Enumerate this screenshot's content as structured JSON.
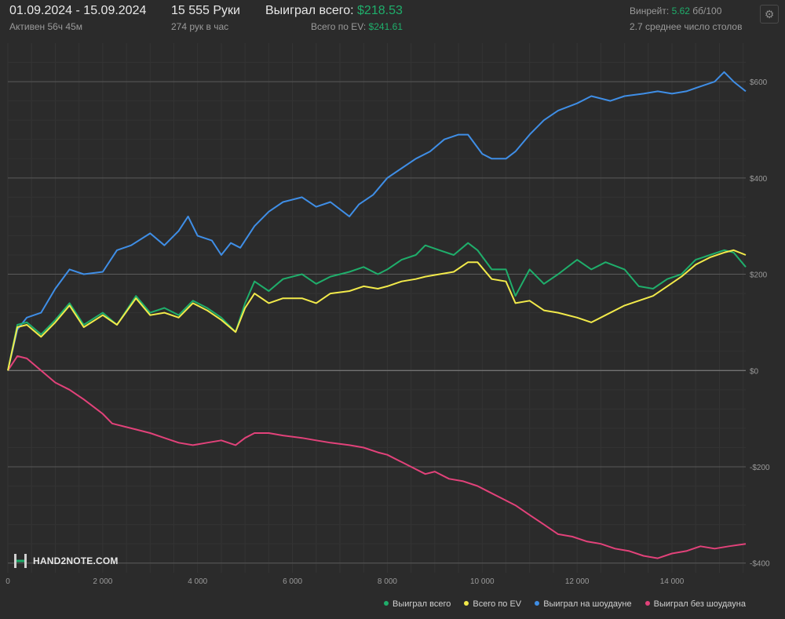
{
  "header": {
    "date_range": "01.09.2024 - 15.09.2024",
    "active": "Активен 56ч 45м",
    "hands": "15 555 Руки",
    "hands_per_hour": "274 рук в час",
    "won_total_label": "Выиграл всего:",
    "won_total_value": "$218.53",
    "ev_total_label": "Всего по EV:",
    "ev_total_value": "$241.61",
    "winrate_label": "Винрейт:",
    "winrate_value": "5.62",
    "winrate_unit": "бб/100",
    "avg_tables": "2.7 среднее число столов",
    "settings_icon": "gear-icon"
  },
  "logo_text": "HAND2NOTE.COM",
  "colors": {
    "won_total": "#1fae6b",
    "ev_total": "#f2ea4a",
    "showdown": "#3f8ee6",
    "non_showdown": "#e2427a",
    "background": "#2b2b2b"
  },
  "chart_data": {
    "type": "line",
    "title": "",
    "xlabel": "",
    "ylabel": "",
    "xlim": [
      0,
      15555
    ],
    "ylim": [
      -420,
      680
    ],
    "x_ticks": [
      0,
      2000,
      4000,
      6000,
      8000,
      10000,
      12000,
      14000
    ],
    "x_tick_labels": [
      "0",
      "2 000",
      "4 000",
      "6 000",
      "8 000",
      "10 000",
      "12 000",
      "14 000"
    ],
    "y_ticks": [
      600,
      400,
      200,
      0,
      -200,
      -400
    ],
    "y_tick_labels": [
      "$600",
      "$400",
      "$200",
      "$0",
      "-$200",
      "-$400"
    ],
    "grid": true,
    "legend_position": "bottom-right",
    "series": [
      {
        "name": "Выиграл всего",
        "color": "#1fae6b",
        "x": [
          0,
          200,
          400,
          700,
          1000,
          1300,
          1600,
          2000,
          2300,
          2700,
          3000,
          3300,
          3600,
          3900,
          4200,
          4500,
          4800,
          5000,
          5200,
          5500,
          5800,
          6200,
          6500,
          6800,
          7200,
          7500,
          7800,
          8000,
          8300,
          8600,
          8800,
          9100,
          9400,
          9700,
          9900,
          10200,
          10500,
          10700,
          11000,
          11300,
          11600,
          12000,
          12300,
          12600,
          13000,
          13300,
          13600,
          13900,
          14200,
          14500,
          14800,
          15100,
          15300,
          15555
        ],
        "y": [
          0,
          95,
          100,
          75,
          105,
          140,
          95,
          120,
          95,
          155,
          120,
          130,
          115,
          145,
          130,
          110,
          80,
          140,
          185,
          165,
          190,
          200,
          180,
          195,
          205,
          215,
          200,
          210,
          230,
          240,
          260,
          250,
          240,
          265,
          250,
          210,
          210,
          155,
          210,
          180,
          200,
          230,
          210,
          225,
          210,
          175,
          170,
          190,
          200,
          230,
          240,
          250,
          245,
          215
        ]
      },
      {
        "name": "Всего по EV",
        "color": "#f2ea4a",
        "x": [
          0,
          200,
          400,
          700,
          1000,
          1300,
          1600,
          2000,
          2300,
          2700,
          3000,
          3300,
          3600,
          3900,
          4200,
          4500,
          4800,
          5000,
          5200,
          5500,
          5800,
          6200,
          6500,
          6800,
          7200,
          7500,
          7800,
          8000,
          8300,
          8600,
          8800,
          9100,
          9400,
          9700,
          9900,
          10200,
          10500,
          10700,
          11000,
          11300,
          11600,
          12000,
          12300,
          12600,
          13000,
          13300,
          13600,
          13900,
          14200,
          14500,
          14800,
          15100,
          15300,
          15555
        ],
        "y": [
          0,
          90,
          95,
          70,
          100,
          135,
          90,
          115,
          95,
          150,
          115,
          120,
          110,
          140,
          125,
          105,
          80,
          130,
          160,
          140,
          150,
          150,
          140,
          160,
          165,
          175,
          170,
          175,
          185,
          190,
          195,
          200,
          205,
          225,
          225,
          190,
          185,
          140,
          145,
          125,
          120,
          110,
          100,
          115,
          135,
          145,
          155,
          175,
          195,
          220,
          235,
          245,
          250,
          240
        ]
      },
      {
        "name": "Выиграл на шоудауне",
        "color": "#3f8ee6",
        "x": [
          0,
          200,
          400,
          700,
          1000,
          1300,
          1600,
          2000,
          2300,
          2600,
          3000,
          3300,
          3600,
          3800,
          4000,
          4300,
          4500,
          4700,
          4900,
          5200,
          5500,
          5800,
          6200,
          6500,
          6800,
          7200,
          7400,
          7700,
          8000,
          8300,
          8600,
          8900,
          9200,
          9500,
          9700,
          10000,
          10200,
          10500,
          10700,
          11000,
          11300,
          11600,
          12000,
          12300,
          12700,
          13000,
          13400,
          13700,
          14000,
          14300,
          14600,
          14900,
          15100,
          15300,
          15555
        ],
        "y": [
          0,
          85,
          110,
          120,
          170,
          210,
          200,
          205,
          250,
          260,
          285,
          260,
          290,
          320,
          280,
          270,
          240,
          265,
          255,
          300,
          330,
          350,
          360,
          340,
          350,
          320,
          345,
          365,
          400,
          420,
          440,
          455,
          480,
          490,
          490,
          450,
          440,
          440,
          455,
          490,
          520,
          540,
          555,
          570,
          560,
          570,
          575,
          580,
          575,
          580,
          590,
          600,
          620,
          600,
          580
        ]
      },
      {
        "name": "Выиграл без шоудауна",
        "color": "#e2427a",
        "x": [
          0,
          200,
          400,
          700,
          1000,
          1300,
          1600,
          2000,
          2200,
          2600,
          3000,
          3300,
          3600,
          3900,
          4200,
          4500,
          4800,
          5000,
          5200,
          5500,
          5800,
          6200,
          6500,
          6800,
          7200,
          7500,
          7800,
          8000,
          8300,
          8500,
          8800,
          9000,
          9300,
          9600,
          9900,
          10100,
          10400,
          10700,
          11000,
          11300,
          11600,
          11900,
          12200,
          12500,
          12800,
          13100,
          13400,
          13700,
          14000,
          14300,
          14600,
          14900,
          15200,
          15555
        ],
        "y": [
          0,
          30,
          25,
          0,
          -25,
          -40,
          -60,
          -90,
          -110,
          -120,
          -130,
          -140,
          -150,
          -155,
          -150,
          -145,
          -155,
          -140,
          -130,
          -130,
          -135,
          -140,
          -145,
          -150,
          -155,
          -160,
          -170,
          -175,
          -190,
          -200,
          -215,
          -210,
          -225,
          -230,
          -240,
          -250,
          -265,
          -280,
          -300,
          -320,
          -340,
          -345,
          -355,
          -360,
          -370,
          -375,
          -385,
          -390,
          -380,
          -375,
          -365,
          -370,
          -365,
          -360
        ]
      }
    ]
  }
}
